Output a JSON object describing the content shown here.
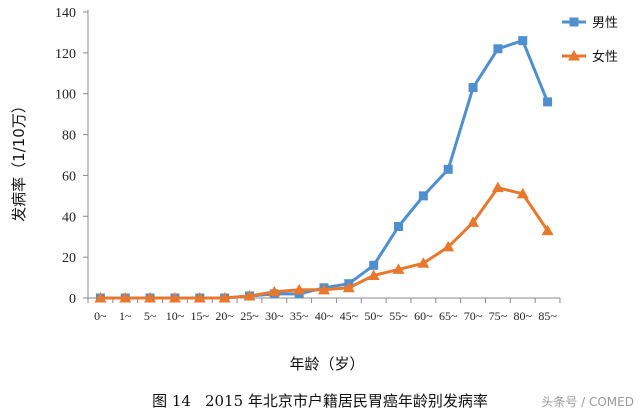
{
  "chart_data": {
    "type": "line",
    "xlabel": "年龄（岁）",
    "ylabel": "发病率（1/10万）",
    "ylim": [
      0,
      140
    ],
    "yticks": [
      "0",
      "20",
      "40",
      "60",
      "80",
      "100",
      "120",
      "140"
    ],
    "categories": [
      "0~",
      "1~",
      "5~",
      "10~",
      "15~",
      "20~",
      "25~",
      "30~",
      "35~",
      "40~",
      "45~",
      "50~",
      "55~",
      "60~",
      "65~",
      "70~",
      "75~",
      "80~",
      "85~"
    ],
    "series": [
      {
        "name": "男性",
        "color": "#4f8fcf",
        "marker": "square",
        "values": [
          0,
          0,
          0,
          0,
          0,
          0,
          1,
          2,
          2,
          5,
          7,
          16,
          35,
          50,
          63,
          103,
          122,
          126,
          96
        ]
      },
      {
        "name": "女性",
        "color": "#e8782e",
        "marker": "triangle",
        "values": [
          0,
          0,
          0,
          0,
          0,
          0,
          1,
          3,
          4,
          4,
          5,
          11,
          14,
          17,
          25,
          37,
          54,
          51,
          33
        ]
      }
    ],
    "legend_position": "top-right",
    "grid": false
  },
  "caption": {
    "figure_number": "图 14",
    "text": "2015 年北京市户籍居民胃癌年龄别发病率"
  },
  "watermark": "头条号 / COMED"
}
